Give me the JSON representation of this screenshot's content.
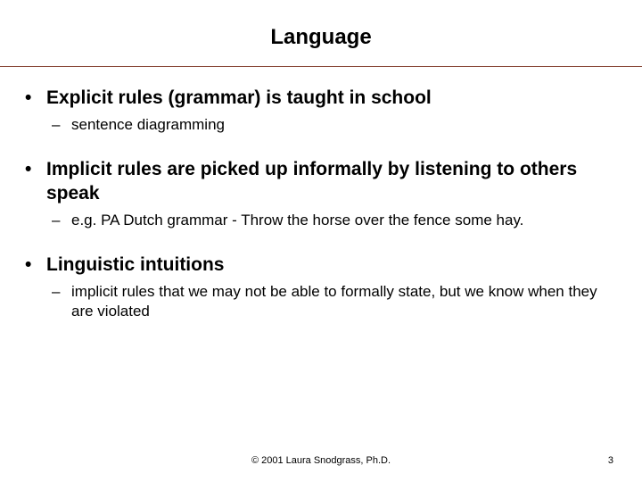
{
  "slide": {
    "title": "Language",
    "title_fontsize": 24,
    "title_weight": "bold",
    "rule_color": "#8a4a3a",
    "background_color": "#ffffff",
    "bullets": [
      {
        "text": "Explicit rules (grammar) is taught in school",
        "sub": [
          {
            "text": "sentence diagramming"
          }
        ]
      },
      {
        "text": "Implicit rules are picked up informally by listening to others speak",
        "sub": [
          {
            "text": "e.g. PA Dutch grammar - Throw the horse over the fence some hay."
          }
        ]
      },
      {
        "text": "Linguistic intuitions",
        "sub": [
          {
            "text": "implicit rules that we may not be able to formally state, but we know when they are violated"
          }
        ]
      }
    ],
    "lvl1_fontsize": 21,
    "lvl1_weight": "bold",
    "lvl2_fontsize": 17,
    "lvl2_weight": "normal",
    "bullet_glyph": "•",
    "dash_glyph": "–",
    "footer": {
      "copyright": "© 2001 Laura Snodgrass, Ph.D.",
      "page_number": "3",
      "fontsize": 11
    }
  }
}
